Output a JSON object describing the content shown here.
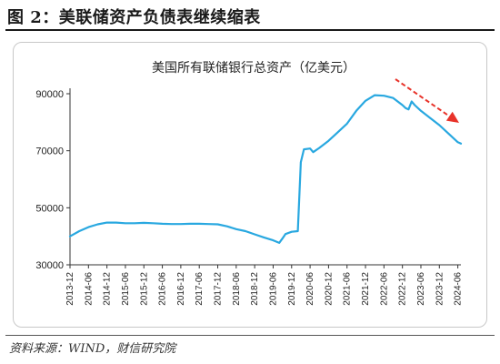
{
  "figure": {
    "title": "图 2：美联储资产负债表继续缩表",
    "source": "资料来源：WIND，财信研究院"
  },
  "colors": {
    "line": "#29a8e0",
    "arrow": "#e8332a",
    "axis": "#333333"
  },
  "chart_data": {
    "type": "line",
    "title": "美国所有联储银行总资产（亿美元）",
    "xlabel": "",
    "ylabel": "",
    "ylim": [
      30000,
      90000
    ],
    "yticks": [
      30000,
      50000,
      70000,
      90000
    ],
    "x_tick_labels": [
      "2013-12",
      "2014-06",
      "2014-12",
      "2015-06",
      "2015-12",
      "2016-06",
      "2016-12",
      "2017-06",
      "2017-12",
      "2018-06",
      "2018-12",
      "2019-06",
      "2019-12",
      "2020-06",
      "2020-12",
      "2021-06",
      "2021-12",
      "2022-06",
      "2022-12",
      "2023-06",
      "2023-12",
      "2024-06"
    ],
    "series": [
      {
        "x": [
          "2013-12",
          "2014-03",
          "2014-06",
          "2014-09",
          "2014-12",
          "2015-03",
          "2015-06",
          "2015-09",
          "2015-12",
          "2016-03",
          "2016-06",
          "2016-09",
          "2016-12",
          "2017-03",
          "2017-06",
          "2017-09",
          "2017-12",
          "2018-03",
          "2018-06",
          "2018-09",
          "2018-12",
          "2019-03",
          "2019-06",
          "2019-08",
          "2019-09",
          "2019-10",
          "2019-12",
          "2020-02",
          "2020-03",
          "2020-04",
          "2020-06",
          "2020-07",
          "2020-09",
          "2020-12",
          "2021-03",
          "2021-06",
          "2021-09",
          "2021-12",
          "2022-03",
          "2022-06",
          "2022-09",
          "2022-12",
          "2023-01",
          "2023-02",
          "2023-03",
          "2023-04",
          "2023-06",
          "2023-09",
          "2023-12",
          "2024-03",
          "2024-06",
          "2024-07"
        ],
        "values": [
          40000,
          41800,
          43200,
          44200,
          44800,
          44800,
          44600,
          44600,
          44700,
          44600,
          44400,
          44300,
          44300,
          44400,
          44400,
          44300,
          44200,
          43500,
          42500,
          41800,
          40700,
          39600,
          38600,
          37700,
          39200,
          40800,
          41600,
          41800,
          66000,
          70500,
          70800,
          69500,
          71000,
          73500,
          76500,
          79500,
          84000,
          87500,
          89500,
          89300,
          88500,
          86000,
          85000,
          84500,
          87300,
          86000,
          84000,
          81500,
          79000,
          76000,
          73000,
          72500
        ]
      }
    ]
  }
}
